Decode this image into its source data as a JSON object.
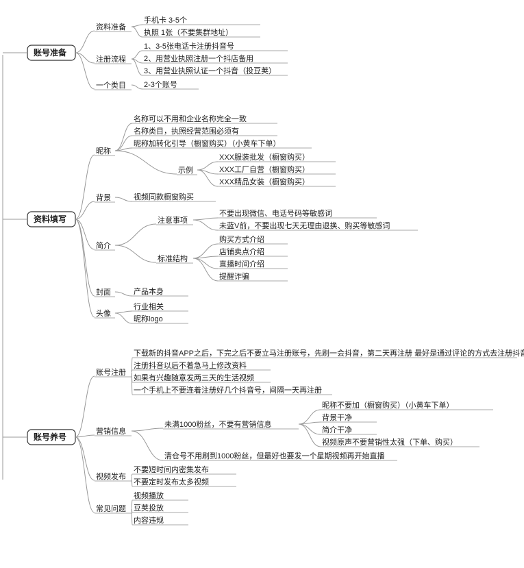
{
  "diagram": {
    "type": "tree",
    "background": "#ffffff",
    "link_color": "#999999",
    "leaf_line_color": "#aaaaaa",
    "node_border_color": "#333333",
    "node_fill": "#ffffff",
    "node_font_size": 12,
    "branch_font_size": 11,
    "leaf_font_size": 11,
    "root_items": [
      {
        "id": "n1",
        "label": "账号准备"
      },
      {
        "id": "n2",
        "label": "资料填写"
      },
      {
        "id": "n3",
        "label": "账号养号"
      }
    ],
    "n1": {
      "children": [
        {
          "label": "资料准备",
          "leaves": [
            "手机卡        3-5个",
            "执照        1张（不要集群地址）"
          ]
        },
        {
          "label": "注册流程",
          "leaves": [
            "1、3-5张电话卡注册抖音号",
            "2、用营业执照注册一个抖店备用",
            "3、用营业执照认证一个抖音（投豆荚）"
          ]
        },
        {
          "label": "一个类目",
          "leaves": [
            "2-3个账号"
          ]
        }
      ]
    },
    "n2": {
      "children": [
        {
          "label": "昵称",
          "leaves": [
            "名称可以不用和企业名称完全一致",
            "名称类目，执照经营范围必须有",
            "昵称加转化引导（橱窗购买）（小黄车下单）"
          ],
          "sub": {
            "label": "示例",
            "leaves": [
              "XXX服装批发（橱窗购买）",
              "XXX工厂自营（橱窗购买）",
              "XXX精品女装（橱窗购买）"
            ]
          }
        },
        {
          "label": "背景",
          "leaves": [
            "视频同款橱窗购买"
          ]
        },
        {
          "label": "简介",
          "children": [
            {
              "label": "注意事项",
              "leaves": [
                "不要出现微信、电话号码等敏感词",
                "未蓝V前，不要出现七天无理由退换、购买等敏感词"
              ]
            },
            {
              "label": "标准结构",
              "leaves": [
                "购买方式介绍",
                "店铺卖点介绍",
                "直播时间介绍",
                "提醒诈骗"
              ]
            }
          ]
        },
        {
          "label": "封面",
          "leaves": [
            "产品本身"
          ]
        },
        {
          "label": "头像",
          "leaves": [
            "行业相关",
            "昵称logo"
          ]
        }
      ]
    },
    "n3": {
      "children": [
        {
          "label": "账号注册",
          "leaves": [
            "下载新的抖音APP之后，下完之后不要立马注册账号，先刷一会抖音，第二天再注册        最好是通过评论的方式去注册抖音号",
            "注册抖音以后不着急马上修改资料",
            "如果有兴趣随意发两三天的生活视频",
            "一个手机上不要连着注册好几个抖音号，间隔一天再注册"
          ]
        },
        {
          "label": "营销信息",
          "children": [
            {
              "label": "未满1000粉丝，不要有营销信息",
              "leaves": [
                "昵称不要加（橱窗购买）（小黄车下单）",
                "背景干净",
                "简介干净",
                "视频原声不要营销性太强（下单、购买）"
              ]
            }
          ],
          "extra_leaf": "清仓号不用刷到1000粉丝，但最好也要发一个星期视频再开始直播"
        },
        {
          "label": "视频发布",
          "leaves": [
            "不要短时间内密集发布",
            "不要定时发布太多视频"
          ]
        },
        {
          "label": "常见问题",
          "leaves": [
            "视频播放",
            "豆荚投放",
            "内容违规"
          ]
        }
      ]
    }
  }
}
